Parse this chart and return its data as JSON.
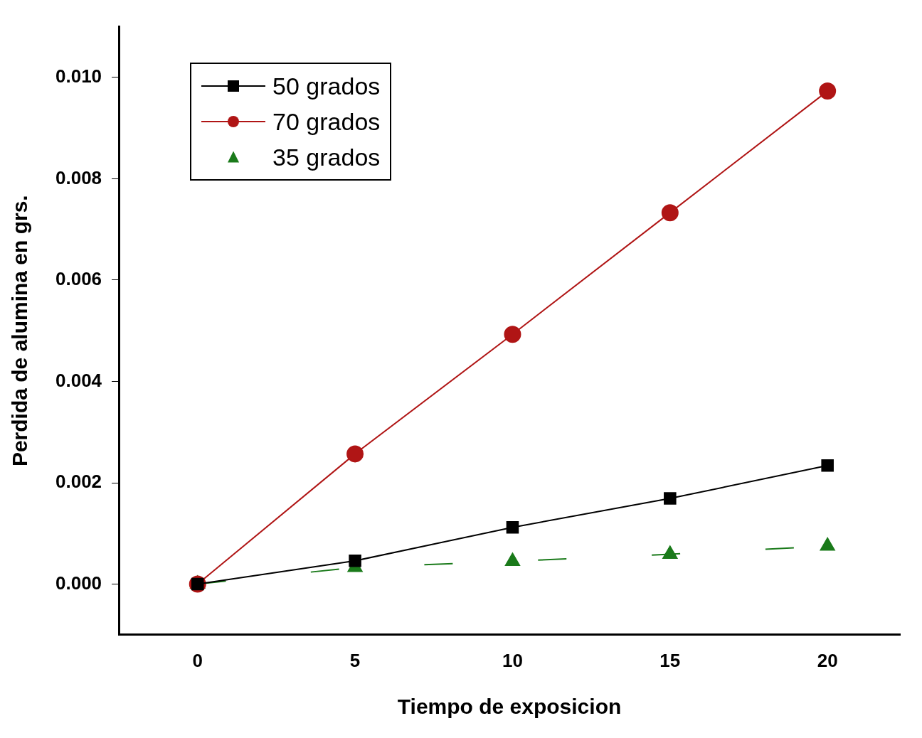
{
  "chart_data": {
    "type": "line",
    "xlabel": "Tiempo de exposicion",
    "ylabel": "Perdida de alumina en grs.",
    "xlim": [
      -2.5,
      22.3
    ],
    "xticks": [
      0,
      5,
      10,
      15,
      20
    ],
    "ylim": [
      -0.001,
      0.011
    ],
    "yticks": [
      {
        "value": 0,
        "label": "0.000"
      },
      {
        "value": 0.002,
        "label": "0.002"
      },
      {
        "value": 0.004,
        "label": "0.004"
      },
      {
        "value": 0.006,
        "label": "0.006"
      },
      {
        "value": 0.008,
        "label": "0.008"
      },
      {
        "value": 0.01,
        "label": "0.010"
      }
    ],
    "grid": false,
    "legend": "top left",
    "series": [
      {
        "name": "50 grados",
        "color": "#000000",
        "marker": "square",
        "line_style": "solid",
        "x": [
          0,
          5,
          10,
          15,
          20
        ],
        "values": [
          0,
          0.00046,
          0.00112,
          0.00169,
          0.00234
        ]
      },
      {
        "name": "70 grados",
        "color": "#b01515",
        "marker": "circle",
        "line_style": "solid",
        "x": [
          0,
          5,
          10,
          15,
          20
        ],
        "values": [
          0,
          0.00257,
          0.00493,
          0.00733,
          0.00973
        ]
      },
      {
        "name": "35 grados",
        "color": "#1a7a1a",
        "marker": "triangle",
        "line_style": "dashed",
        "x": [
          0,
          5,
          10,
          15,
          20
        ],
        "values": [
          0,
          0.00033,
          0.00045,
          0.00059,
          0.00075
        ]
      }
    ]
  }
}
